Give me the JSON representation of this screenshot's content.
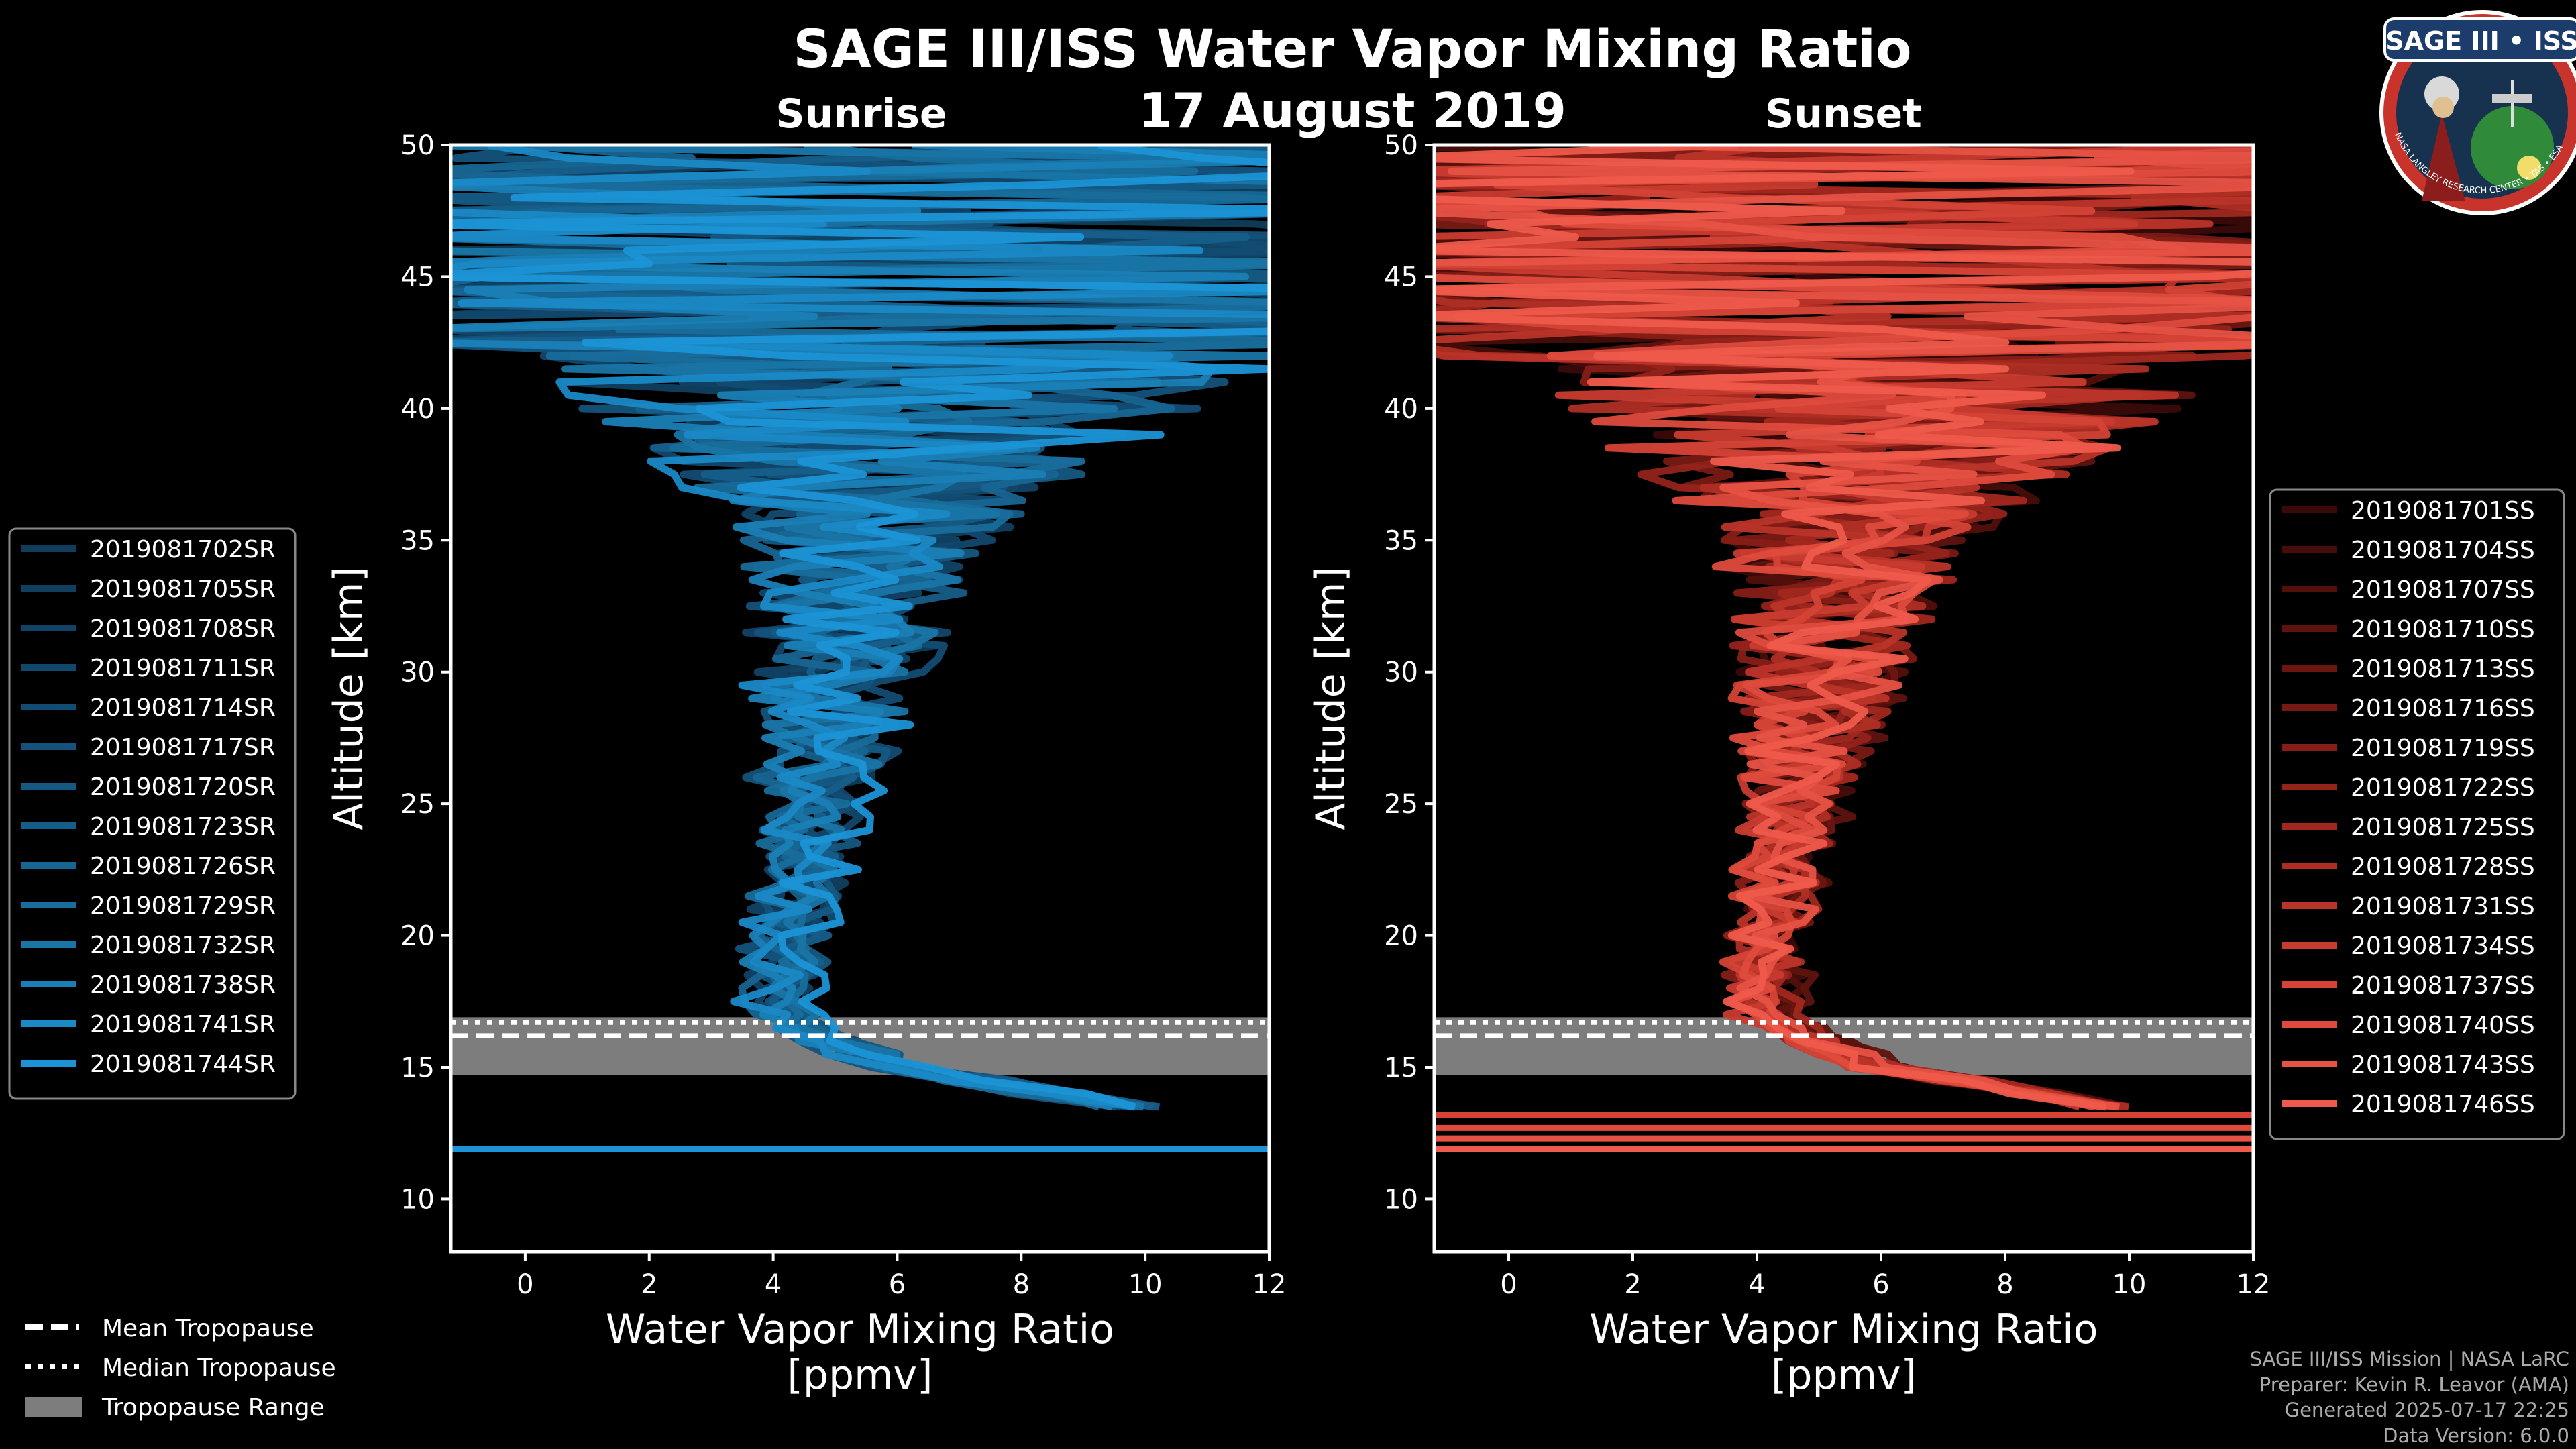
{
  "title": "SAGE III/ISS Water Vapor Mixing Ratio",
  "date": "17 August 2019",
  "colors": {
    "sunrise": "#1a8fd1",
    "sunset": "#e8584a",
    "tropopause_range": "#7d7d7d"
  },
  "credits": {
    "line1": "SAGE III/ISS Mission | NASA LaRC",
    "line2": "Preparer: Kevin R. Leavor (AMA)",
    "line3": "Generated 2025-07-17 22:25",
    "line4": "Data Version: 6.0.0"
  },
  "logo": {
    "text": "SAGE III • ISS",
    "ring_text": "NASA LANGLEY RESEARCH CENTER • TAS • ESA",
    "icon": "mission-patch-icon"
  },
  "tropopause_legend": {
    "mean": "Mean Tropopause",
    "median": "Median Tropopause",
    "range": "Tropopause Range"
  },
  "chart_data": [
    {
      "type": "line",
      "panel": "Sunrise",
      "title": "Sunrise",
      "xlabel": "Water Vapor Mixing Ratio",
      "xlabel2": "[ppmv]",
      "ylabel": "Altitude [km]",
      "xlim": [
        -1.2,
        12
      ],
      "ylim": [
        8,
        50
      ],
      "xticks": [
        0,
        2,
        4,
        6,
        8,
        10,
        12
      ],
      "yticks": [
        10,
        15,
        20,
        25,
        30,
        35,
        40,
        45,
        50
      ],
      "tropopause": {
        "mean": 16.2,
        "median": 16.7,
        "range": [
          14.7,
          16.9
        ]
      },
      "legend": [
        "2019081702SR",
        "2019081705SR",
        "2019081708SR",
        "2019081711SR",
        "2019081714SR",
        "2019081717SR",
        "2019081720SR",
        "2019081723SR",
        "2019081726SR",
        "2019081729SR",
        "2019081732SR",
        "2019081738SR",
        "2019081741SR",
        "2019081744SR"
      ],
      "series_colors": [
        "#0f3d5b",
        "#103f60",
        "#114366",
        "#12476c",
        "#134c73",
        "#14527b",
        "#155882",
        "#165e8a",
        "#176592",
        "#186d9b",
        "#1975a6",
        "#1a7fb6",
        "#1a89c6",
        "#1b93d6"
      ],
      "low_flat_line": 11.9
    },
    {
      "type": "line",
      "panel": "Sunset",
      "title": "Sunset",
      "xlabel": "Water Vapor Mixing Ratio",
      "xlabel2": "[ppmv]",
      "ylabel": "Altitude [km]",
      "xlim": [
        -1.2,
        12
      ],
      "ylim": [
        8,
        50
      ],
      "xticks": [
        0,
        2,
        4,
        6,
        8,
        10,
        12
      ],
      "yticks": [
        10,
        15,
        20,
        25,
        30,
        35,
        40,
        45,
        50
      ],
      "tropopause": {
        "mean": 16.2,
        "median": 16.7,
        "range": [
          14.7,
          16.9
        ]
      },
      "legend": [
        "2019081701SS",
        "2019081704SS",
        "2019081707SS",
        "2019081710SS",
        "2019081713SS",
        "2019081716SS",
        "2019081719SS",
        "2019081722SS",
        "2019081725SS",
        "2019081728SS",
        "2019081731SS",
        "2019081734SS",
        "2019081737SS",
        "2019081740SS",
        "2019081743SS",
        "2019081746SS"
      ],
      "series_colors": [
        "#3a0a08",
        "#460d0a",
        "#52100c",
        "#5e130e",
        "#6b1611",
        "#781a14",
        "#861e17",
        "#93231b",
        "#a1281f",
        "#ae2e24",
        "#bb3429",
        "#c83b2f",
        "#d44336",
        "#de4b3d",
        "#e65244",
        "#ee5a4b"
      ],
      "low_flat_lines": [
        11.9,
        12.3,
        12.7,
        13.2
      ]
    }
  ]
}
